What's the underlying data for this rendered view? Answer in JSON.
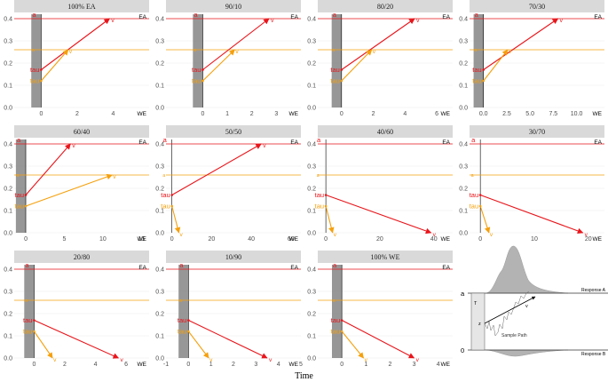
{
  "x_axis_title": "Time",
  "colors": {
    "ea": "#e8151b",
    "we": "#f5a00c",
    "tau_band": "#8c8c8c",
    "strip": "#d9d9d9",
    "grid": "#ebebeb"
  },
  "chart_data": [
    {
      "type": "line",
      "title": "100% EA",
      "xlabel": "WE",
      "ylabel": "EA",
      "xlim": [
        -1.5,
        6
      ],
      "xticks": [
        "0",
        "2",
        "4"
      ],
      "ylim": [
        0,
        0.42
      ],
      "yticks": [
        "0.0",
        "0.1",
        "0.2",
        "0.3",
        "0.4"
      ],
      "a_ea": 0.4,
      "a_we": 0.26,
      "tau_ea": 0.17,
      "tau_we": 0.12,
      "v_ea_end": [
        3.8,
        0.4
      ],
      "v_we_end": [
        1.5,
        0.26
      ],
      "show_tau_band": true
    },
    {
      "type": "line",
      "title": "90/10",
      "xlabel": "WE",
      "ylabel": "EA",
      "xlim": [
        -1.5,
        4
      ],
      "xticks": [
        "0",
        "1",
        "2",
        "3"
      ],
      "ylim": [
        0,
        0.42
      ],
      "yticks": [
        "0.0",
        "0.1",
        "0.2",
        "0.3",
        "0.4"
      ],
      "a_ea": 0.4,
      "a_we": 0.26,
      "tau_ea": 0.17,
      "tau_we": 0.12,
      "v_ea_end": [
        2.7,
        0.4
      ],
      "v_we_end": [
        1.3,
        0.26
      ],
      "show_tau_band": true
    },
    {
      "type": "line",
      "title": "80/20",
      "xlabel": "WE",
      "ylabel": "EA",
      "xlim": [
        -1.5,
        7
      ],
      "xticks": [
        "0",
        "2",
        "4",
        "6"
      ],
      "ylim": [
        0,
        0.42
      ],
      "yticks": [
        "0.0",
        "0.1",
        "0.2",
        "0.3",
        "0.4"
      ],
      "a_ea": 0.4,
      "a_we": 0.26,
      "tau_ea": 0.17,
      "tau_we": 0.12,
      "v_ea_end": [
        4.6,
        0.4
      ],
      "v_we_end": [
        1.9,
        0.26
      ],
      "show_tau_band": true
    },
    {
      "type": "line",
      "title": "70/30",
      "xlabel": "WE",
      "ylabel": "EA",
      "xlim": [
        -1.5,
        13
      ],
      "xticks": [
        "0.0",
        "2.5",
        "5.0",
        "7.5",
        "10.0"
      ],
      "ylim": [
        0,
        0.42
      ],
      "yticks": [
        "0.0",
        "0.1",
        "0.2",
        "0.3",
        "0.4"
      ],
      "a_ea": 0.4,
      "a_we": 0.26,
      "tau_ea": 0.17,
      "tau_we": 0.12,
      "v_ea_end": [
        8.0,
        0.4
      ],
      "v_we_end": [
        2.6,
        0.26
      ],
      "show_tau_band": true
    },
    {
      "type": "line",
      "title": "60/40",
      "xlabel": "WE",
      "ylabel": "EA",
      "xlim": [
        -1.5,
        16
      ],
      "xticks": [
        "0",
        "5",
        "10",
        "15"
      ],
      "ylim": [
        0,
        0.42
      ],
      "yticks": [
        "0.0",
        "0.1",
        "0.2",
        "0.3",
        "0.4"
      ],
      "a_ea": 0.4,
      "a_we": 0.26,
      "tau_ea": 0.17,
      "tau_we": 0.12,
      "v_ea_end": [
        5.8,
        0.4
      ],
      "v_we_end": [
        11.2,
        0.26
      ],
      "show_tau_band": true
    },
    {
      "type": "line",
      "title": "50/50",
      "xlabel": "WE",
      "ylabel": "EA",
      "xlim": [
        -3,
        65
      ],
      "xticks": [
        "0",
        "20",
        "40",
        "60"
      ],
      "ylim": [
        0,
        0.42
      ],
      "yticks": [
        "0.0",
        "0.1",
        "0.2",
        "0.3",
        "0.4"
      ],
      "a_ea": 0.4,
      "a_we": 0.26,
      "tau_ea": 0.17,
      "tau_we": 0.12,
      "v_ea_end": [
        45,
        0.4
      ],
      "v_we_end": [
        3.5,
        0.0
      ],
      "show_tau_band": false
    },
    {
      "type": "line",
      "title": "40/60",
      "xlabel": "WE",
      "ylabel": "EA",
      "xlim": [
        -3,
        47
      ],
      "xticks": [
        "0",
        "20",
        "40"
      ],
      "ylim": [
        0,
        0.42
      ],
      "yticks": [
        "0.0",
        "0.1",
        "0.2",
        "0.3",
        "0.4"
      ],
      "a_ea": 0.4,
      "a_we": 0.26,
      "tau_ea": 0.17,
      "tau_we": 0.12,
      "v_ea_end": [
        39,
        0.0
      ],
      "v_we_end": [
        2.5,
        0.0
      ],
      "show_tau_band": false
    },
    {
      "type": "line",
      "title": "30/70",
      "xlabel": "WE",
      "ylabel": "EA",
      "xlim": [
        -2,
        23
      ],
      "xticks": [
        "0",
        "10",
        "20"
      ],
      "ylim": [
        0,
        0.42
      ],
      "yticks": [
        "0.0",
        "0.1",
        "0.2",
        "0.3",
        "0.4"
      ],
      "a_ea": 0.4,
      "a_we": 0.26,
      "tau_ea": 0.17,
      "tau_we": 0.12,
      "v_ea_end": [
        19,
        0.0
      ],
      "v_we_end": [
        1.6,
        0.0
      ],
      "show_tau_band": false
    },
    {
      "type": "line",
      "title": "20/80",
      "xlabel": "WE",
      "ylabel": "EA",
      "xlim": [
        -1.3,
        7.5
      ],
      "xticks": [
        "0",
        "2",
        "4",
        "6"
      ],
      "ylim": [
        0,
        0.42
      ],
      "yticks": [
        "0.0",
        "0.1",
        "0.2",
        "0.3",
        "0.4"
      ],
      "a_ea": 0.4,
      "a_we": 0.26,
      "tau_ea": 0.17,
      "tau_we": 0.12,
      "v_ea_end": [
        5.5,
        0.0
      ],
      "v_we_end": [
        1.2,
        0.0
      ],
      "show_tau_band": true
    },
    {
      "type": "line",
      "title": "10/90",
      "xlabel": "WE",
      "ylabel": "EA",
      "xlim": [
        -1,
        5
      ],
      "xticks": [
        "-1",
        "0",
        "1",
        "2",
        "3",
        "4",
        "5"
      ],
      "ylim": [
        0,
        0.42
      ],
      "yticks": [
        "0.0",
        "0.1",
        "0.2",
        "0.3",
        "0.4"
      ],
      "a_ea": 0.4,
      "a_we": 0.26,
      "tau_ea": 0.17,
      "tau_we": 0.12,
      "v_ea_end": [
        3.5,
        0.0
      ],
      "v_we_end": [
        0.9,
        0.0
      ],
      "show_tau_band": true
    },
    {
      "type": "line",
      "title": "100% WE",
      "xlabel": "WE",
      "ylabel": "EA",
      "xlim": [
        -1,
        4.6
      ],
      "xticks": [
        "0",
        "1",
        "2",
        "3",
        "4"
      ],
      "ylim": [
        0,
        0.42
      ],
      "yticks": [
        "0.0",
        "0.1",
        "0.2",
        "0.3",
        "0.4"
      ],
      "a_ea": 0.4,
      "a_we": 0.26,
      "tau_ea": 0.17,
      "tau_we": 0.12,
      "v_ea_end": [
        3.0,
        0.0
      ],
      "v_we_end": [
        0.9,
        0.0
      ],
      "show_tau_band": true
    }
  ],
  "legend": {
    "label_a": "a",
    "label_tau": "tau",
    "label_v": "v",
    "label_ea": "EA",
    "label_we": "WE"
  },
  "schematic": {
    "a_label": "a",
    "zero_label": "0",
    "t_label": "T",
    "z_label": "z",
    "v_label": "v",
    "sample_path": "Sample Path",
    "response_a": "Response A",
    "response_b": "Response B"
  }
}
